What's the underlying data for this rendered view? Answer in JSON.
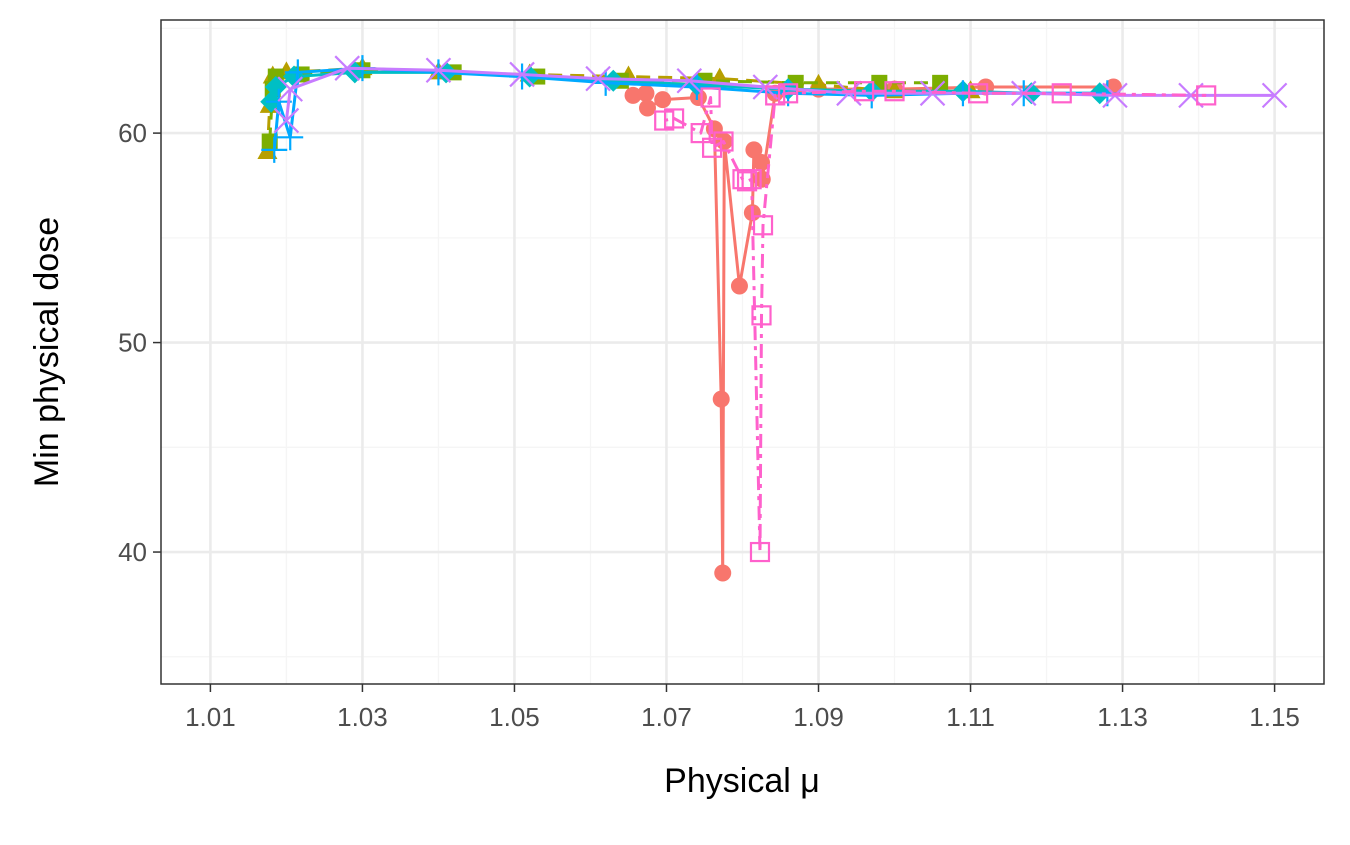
{
  "chart_data": {
    "type": "line",
    "title": "",
    "xlabel": "Physical μ",
    "ylabel": "Min physical dose",
    "xlim": [
      1.0035,
      1.1565
    ],
    "ylim": [
      33.7,
      65.4
    ],
    "x_ticks": [
      "1.01",
      "1.03",
      "1.05",
      "1.07",
      "1.09",
      "1.11",
      "1.13",
      "1.15"
    ],
    "y_ticks": [
      "40",
      "50",
      "60"
    ],
    "grid": true,
    "legend": "none",
    "colors": {
      "red": "#F8766D",
      "olive": "#B79F00",
      "green": "#7CAE00",
      "teal": "#00BFC4",
      "blue": "#00A9FF",
      "purple": "#C77CFF",
      "pink": "#FF61CC",
      "grid_major": "#EBEBEB",
      "grid_minor": "#F5F5F5",
      "panel_border": "#333333"
    },
    "series": [
      {
        "color": "#F8766D",
        "marker": "circle",
        "linestyle": "solid",
        "points": [
          [
            1.0656,
            61.8
          ],
          [
            1.0673,
            61.9
          ],
          [
            1.0675,
            61.2
          ],
          [
            1.0695,
            61.6
          ],
          [
            1.0742,
            61.7
          ],
          [
            1.0763,
            60.2
          ],
          [
            1.0772,
            47.3
          ],
          [
            1.0774,
            39.0
          ],
          [
            1.0776,
            59.6
          ],
          [
            1.0796,
            52.7
          ],
          [
            1.0813,
            56.2
          ],
          [
            1.0815,
            59.2
          ],
          [
            1.0825,
            58.6
          ],
          [
            1.0826,
            57.8
          ],
          [
            1.0843,
            61.9
          ],
          [
            1.09,
            62.1
          ],
          [
            1.1,
            62.1
          ],
          [
            1.112,
            62.2
          ],
          [
            1.1288,
            62.2
          ]
        ]
      },
      {
        "color": "#B79F00",
        "marker": "triangle",
        "linestyle": "dashed",
        "points": [
          [
            1.0175,
            59.1
          ],
          [
            1.0178,
            61.3
          ],
          [
            1.0182,
            62.7
          ],
          [
            1.02,
            62.9
          ],
          [
            1.03,
            63.1
          ],
          [
            1.04,
            62.9
          ],
          [
            1.052,
            62.8
          ],
          [
            1.065,
            62.7
          ],
          [
            1.077,
            62.6
          ],
          [
            1.09,
            62.3
          ],
          [
            1.1,
            62.0
          ],
          [
            1.11,
            62.0
          ]
        ]
      },
      {
        "color": "#7CAE00",
        "marker": "square",
        "linestyle": "dashed",
        "points": [
          [
            1.0178,
            59.6
          ],
          [
            1.0182,
            62.1
          ],
          [
            1.0186,
            62.7
          ],
          [
            1.022,
            62.8
          ],
          [
            1.03,
            63.0
          ],
          [
            1.042,
            62.9
          ],
          [
            1.053,
            62.7
          ],
          [
            1.064,
            62.5
          ],
          [
            1.075,
            62.5
          ],
          [
            1.087,
            62.4
          ],
          [
            1.098,
            62.4
          ],
          [
            1.106,
            62.4
          ]
        ]
      },
      {
        "color": "#00BFC4",
        "marker": "diamond",
        "linestyle": "solid",
        "points": [
          [
            1.018,
            61.5
          ],
          [
            1.0186,
            62.2
          ],
          [
            1.021,
            62.7
          ],
          [
            1.029,
            62.9
          ],
          [
            1.041,
            62.9
          ],
          [
            1.052,
            62.7
          ],
          [
            1.063,
            62.5
          ],
          [
            1.074,
            62.3
          ],
          [
            1.086,
            62.1
          ],
          [
            1.097,
            62.0
          ],
          [
            1.109,
            62.0
          ],
          [
            1.118,
            61.9
          ],
          [
            1.127,
            61.9
          ]
        ]
      },
      {
        "color": "#00A9FF",
        "marker": "plus",
        "linestyle": "solid",
        "points": [
          [
            1.0184,
            59.2
          ],
          [
            1.019,
            61.5
          ],
          [
            1.0205,
            59.8
          ],
          [
            1.0215,
            62.9
          ],
          [
            1.03,
            63.1
          ],
          [
            1.04,
            62.9
          ],
          [
            1.051,
            62.7
          ],
          [
            1.062,
            62.4
          ],
          [
            1.074,
            62.2
          ],
          [
            1.086,
            61.9
          ],
          [
            1.097,
            61.8
          ],
          [
            1.109,
            61.9
          ],
          [
            1.117,
            61.9
          ],
          [
            1.128,
            61.9
          ]
        ]
      },
      {
        "color": "#C77CFF",
        "marker": "cross",
        "linestyle": "solid",
        "points": [
          [
            1.02,
            60.6
          ],
          [
            1.0205,
            62.1
          ],
          [
            1.028,
            63.1
          ],
          [
            1.04,
            63.0
          ],
          [
            1.051,
            62.8
          ],
          [
            1.061,
            62.6
          ],
          [
            1.073,
            62.5
          ],
          [
            1.083,
            62.2
          ],
          [
            1.094,
            61.9
          ],
          [
            1.105,
            61.9
          ],
          [
            1.117,
            61.9
          ],
          [
            1.129,
            61.8
          ],
          [
            1.139,
            61.8
          ],
          [
            1.15,
            61.8
          ]
        ]
      },
      {
        "color": "#FF61CC",
        "marker": "open-square",
        "linestyle": "dotdash",
        "points": [
          [
            1.0697,
            60.6
          ],
          [
            1.071,
            60.7
          ],
          [
            1.0745,
            60.0
          ],
          [
            1.0758,
            61.7
          ],
          [
            1.076,
            59.3
          ],
          [
            1.0775,
            59.6
          ],
          [
            1.08,
            57.8
          ],
          [
            1.0806,
            57.7
          ],
          [
            1.0812,
            57.8
          ],
          [
            1.0823,
            40.0
          ],
          [
            1.0825,
            51.3
          ],
          [
            1.0827,
            55.6
          ],
          [
            1.0843,
            61.8
          ],
          [
            1.086,
            61.9
          ],
          [
            1.096,
            62.0
          ],
          [
            1.1,
            62.0
          ],
          [
            1.111,
            61.9
          ],
          [
            1.122,
            61.9
          ],
          [
            1.141,
            61.8
          ]
        ]
      }
    ]
  }
}
